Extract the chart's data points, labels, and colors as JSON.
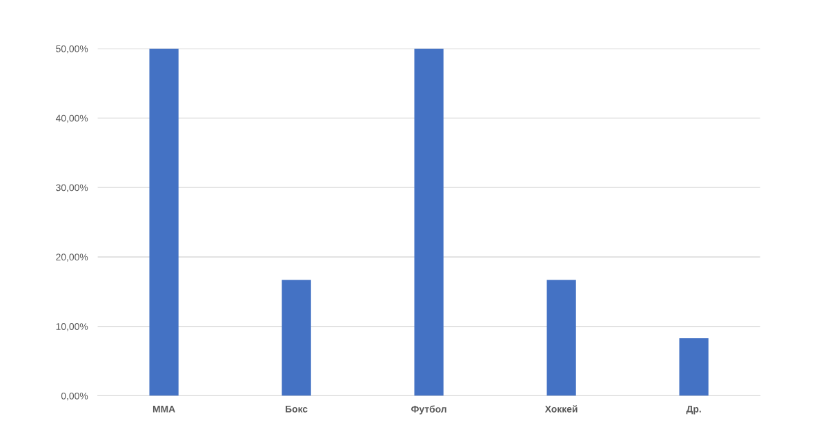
{
  "chart_data": {
    "type": "bar",
    "categories": [
      "MMA",
      "Бокс",
      "Футбол",
      "Хоккей",
      "Др."
    ],
    "values": [
      50,
      16.7,
      50,
      16.7,
      8.3
    ],
    "color": "#4472c4",
    "ylim": [
      0,
      50
    ],
    "yticks": [
      {
        "value": 0,
        "label": "0,00%"
      },
      {
        "value": 10,
        "label": "10,00%"
      },
      {
        "value": 20,
        "label": "20,00%"
      },
      {
        "value": 30,
        "label": "30,00%"
      },
      {
        "value": 40,
        "label": "40,00%"
      },
      {
        "value": 50,
        "label": "50,00%"
      }
    ],
    "grid": "y"
  }
}
